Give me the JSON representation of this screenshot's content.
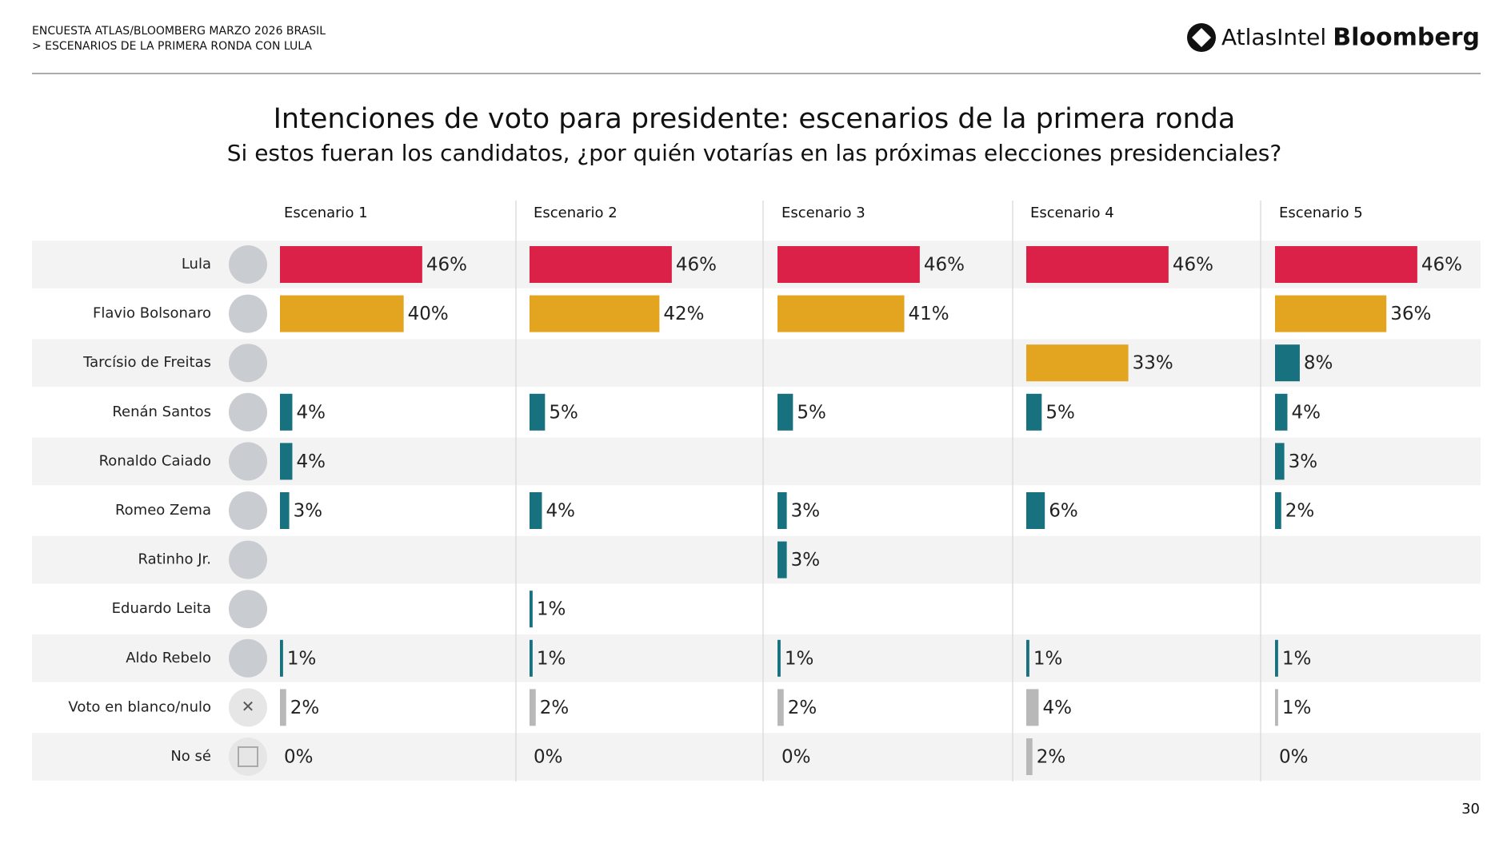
{
  "header": {
    "survey": "ENCUESTA ATLAS/BLOOMBERG MARZO 2026 BRASIL",
    "section": "> ESCENARIOS DE LA PRIMERA RONDA CON LULA",
    "logo_left": "AtlasIntel",
    "logo_right": "Bloomberg"
  },
  "page_number": "30",
  "chart_data": {
    "type": "bar",
    "title": "Intenciones de voto para presidente: escenarios de la primera ronda",
    "subtitle": "Si estos fueran los candidatos, ¿por quién votarías en las próximas elecciones presidenciales?",
    "categories": [
      "Lula",
      "Flavio Bolsonaro",
      "Tarcísio de Freitas",
      "Renán Santos",
      "Ronaldo Caiado",
      "Romeo Zema",
      "Ratinho Jr.",
      "Eduardo Leita",
      "Aldo Rebelo",
      "Voto en blanco/nulo",
      "No sé"
    ],
    "xlim": [
      0,
      60
    ],
    "series": [
      {
        "name": "Escenario 1",
        "values": [
          46,
          40,
          null,
          4,
          4,
          3,
          null,
          null,
          1,
          2,
          0
        ],
        "value_labels": [
          "46%",
          "40%",
          null,
          "4%",
          "4%",
          "3%",
          null,
          null,
          "1%",
          "2%",
          "0%"
        ],
        "colors": [
          "#dc2149",
          "#e3a520",
          null,
          "#17717f",
          "#17717f",
          "#17717f",
          null,
          null,
          "#17717f",
          "#b8b8b8",
          "#b8b8b8"
        ]
      },
      {
        "name": "Escenario 2",
        "values": [
          46,
          42,
          null,
          5,
          null,
          4,
          null,
          1,
          1,
          2,
          0
        ],
        "value_labels": [
          "46%",
          "42%",
          null,
          "5%",
          null,
          "4%",
          null,
          "1%",
          "1%",
          "2%",
          "0%"
        ],
        "colors": [
          "#dc2149",
          "#e3a520",
          null,
          "#17717f",
          null,
          "#17717f",
          null,
          "#17717f",
          "#17717f",
          "#b8b8b8",
          "#b8b8b8"
        ]
      },
      {
        "name": "Escenario 3",
        "values": [
          46,
          41,
          null,
          5,
          null,
          3,
          3,
          null,
          1,
          2,
          0
        ],
        "value_labels": [
          "46%",
          "41%",
          null,
          "5%",
          null,
          "3%",
          "3%",
          null,
          "1%",
          "2%",
          "0%"
        ],
        "colors": [
          "#dc2149",
          "#e3a520",
          null,
          "#17717f",
          null,
          "#17717f",
          "#17717f",
          null,
          "#17717f",
          "#b8b8b8",
          "#b8b8b8"
        ]
      },
      {
        "name": "Escenario 4",
        "values": [
          46,
          null,
          33,
          5,
          null,
          6,
          null,
          null,
          1,
          4,
          2
        ],
        "value_labels": [
          "46%",
          null,
          "33%",
          "5%",
          null,
          "6%",
          null,
          null,
          "1%",
          "4%",
          "2%"
        ],
        "colors": [
          "#dc2149",
          null,
          "#e3a520",
          "#17717f",
          null,
          "#17717f",
          null,
          null,
          "#17717f",
          "#b8b8b8",
          "#b8b8b8"
        ]
      },
      {
        "name": "Escenario 5",
        "values": [
          46,
          36,
          8,
          4,
          3,
          2,
          null,
          null,
          1,
          1,
          0
        ],
        "value_labels": [
          "46%",
          "36%",
          "8%",
          "4%",
          "3%",
          "2%",
          null,
          null,
          "1%",
          "1%",
          "0%"
        ],
        "colors": [
          "#dc2149",
          "#e3a520",
          "#17717f",
          "#17717f",
          "#17717f",
          "#17717f",
          null,
          null,
          "#17717f",
          "#b8b8b8",
          "#b8b8b8"
        ]
      }
    ]
  }
}
